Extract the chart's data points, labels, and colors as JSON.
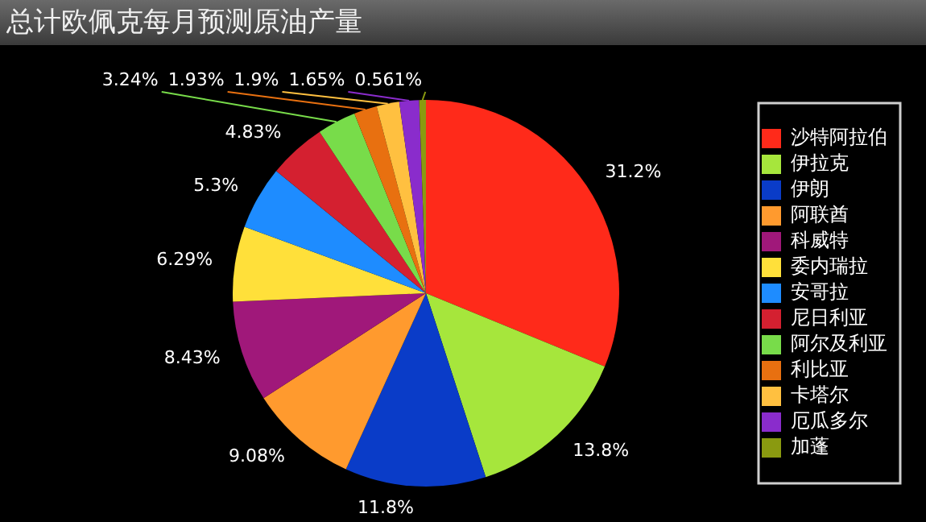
{
  "chart_data": {
    "type": "pie",
    "title": "总计欧佩克每月预测原油产量",
    "categories": [
      "沙特阿拉伯",
      "伊拉克",
      "伊朗",
      "阿联酋",
      "科威特",
      "委内瑞拉",
      "安哥拉",
      "尼日利亚",
      "阿尔及利亚",
      "利比亚",
      "卡塔尔",
      "厄瓜多尔",
      "加蓬"
    ],
    "values": [
      31.2,
      13.8,
      11.8,
      9.08,
      8.43,
      6.29,
      5.3,
      4.83,
      3.24,
      1.93,
      1.9,
      1.65,
      0.561
    ],
    "colors": [
      "#ff2a1a",
      "#a6e63c",
      "#0a3cc8",
      "#ff9a2e",
      "#a0187a",
      "#ffe03a",
      "#1e8cff",
      "#d42030",
      "#78dc4a",
      "#e87010",
      "#ffc040",
      "#8a2ccc",
      "#8a9a10"
    ],
    "value_labels": [
      "31.2%",
      "13.8%",
      "11.8%",
      "9.08%",
      "8.43%",
      "6.29%",
      "5.3%",
      "4.83%",
      "3.24%",
      "1.93%",
      "1.9%",
      "1.65%",
      "0.561%"
    ],
    "legend": "right"
  }
}
